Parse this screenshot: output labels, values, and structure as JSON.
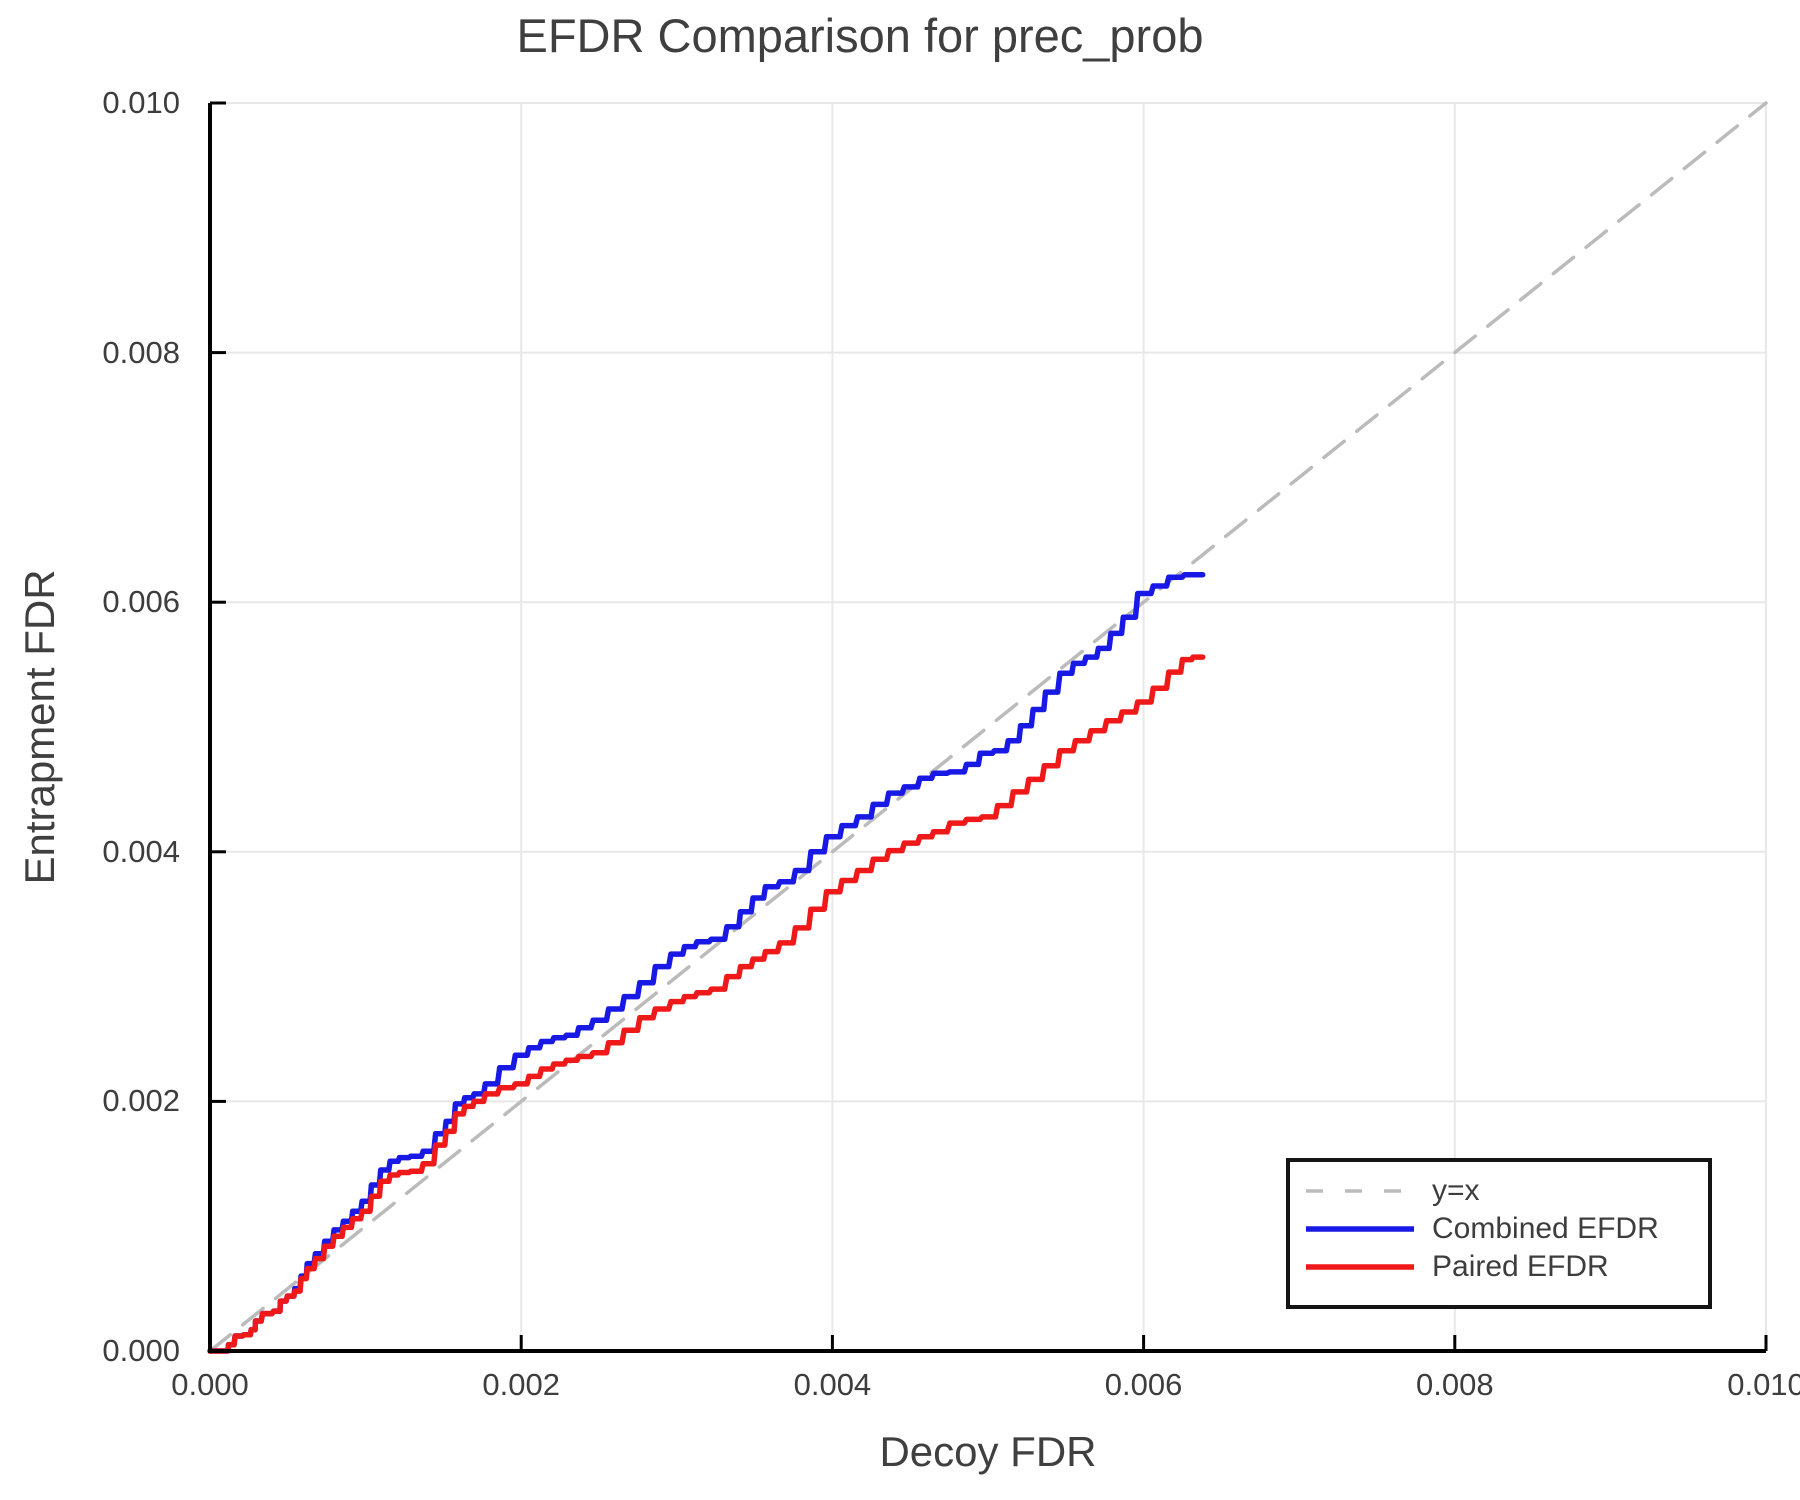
{
  "title": "EFDR Comparison for prec_prob",
  "axes": {
    "xlabel": "Decoy FDR",
    "ylabel": "Entrapment FDR"
  },
  "colors": {
    "text": "#3d3d3d",
    "spine": "#000000",
    "grid": "#e8e8e8",
    "reference_line": "#bbbbbb",
    "combined": "#1919e6",
    "paired": "#f01919"
  },
  "chart_data": {
    "type": "line",
    "title": "EFDR Comparison for prec_prob",
    "xlabel": "Decoy FDR",
    "ylabel": "Entrapment FDR",
    "xlim": [
      0,
      0.01
    ],
    "ylim": [
      0,
      0.01
    ],
    "grid": true,
    "legend_position": "lower right",
    "xticks": {
      "labels": [
        "0.000",
        "0.002",
        "0.004",
        "0.006",
        "0.008",
        "0.010"
      ],
      "values": [
        0,
        0.002,
        0.004,
        0.006,
        0.008,
        0.01
      ]
    },
    "yticks": {
      "labels": [
        "0.000",
        "0.002",
        "0.004",
        "0.006",
        "0.008",
        "0.010"
      ],
      "values": [
        0,
        0.002,
        0.004,
        0.006,
        0.008,
        0.01
      ]
    },
    "series": [
      {
        "name": "y=x",
        "color": "#bbbbbb",
        "style": "dashed",
        "points": [
          [
            0,
            0
          ],
          [
            0.01,
            0.01
          ]
        ]
      },
      {
        "name": "Combined EFDR",
        "color": "#1919e6",
        "style": "solid",
        "points": [
          [
            0.0,
            0.0
          ],
          [
            0.0001,
            0.0
          ],
          [
            0.00013,
            5e-05
          ],
          [
            0.00018,
            0.00012
          ],
          [
            0.00024,
            0.00013
          ],
          [
            0.00028,
            0.00017
          ],
          [
            0.0003,
            0.00024
          ],
          [
            0.00036,
            0.0003
          ],
          [
            0.00044,
            0.00032
          ],
          [
            0.00046,
            0.0004
          ],
          [
            0.00052,
            0.00044
          ],
          [
            0.00056,
            0.0005
          ],
          [
            0.0006,
            0.0006
          ],
          [
            0.00064,
            0.0007
          ],
          [
            0.0007,
            0.00078
          ],
          [
            0.00076,
            0.00088
          ],
          [
            0.00082,
            0.00097
          ],
          [
            0.00088,
            0.00104
          ],
          [
            0.00094,
            0.00112
          ],
          [
            0.001,
            0.0012
          ],
          [
            0.00106,
            0.00133
          ],
          [
            0.00112,
            0.00145
          ],
          [
            0.00118,
            0.00152
          ],
          [
            0.00124,
            0.00155
          ],
          [
            0.00132,
            0.00156
          ],
          [
            0.0014,
            0.0016
          ],
          [
            0.00148,
            0.00174
          ],
          [
            0.00154,
            0.00184
          ],
          [
            0.0016,
            0.00198
          ],
          [
            0.00166,
            0.00203
          ],
          [
            0.00172,
            0.00206
          ],
          [
            0.0018,
            0.00214
          ],
          [
            0.0019,
            0.00227
          ],
          [
            0.002,
            0.00237
          ],
          [
            0.00208,
            0.00243
          ],
          [
            0.00216,
            0.00248
          ],
          [
            0.00224,
            0.00251
          ],
          [
            0.00232,
            0.00253
          ],
          [
            0.0024,
            0.00259
          ],
          [
            0.0025,
            0.00265
          ],
          [
            0.0026,
            0.00274
          ],
          [
            0.0027,
            0.00284
          ],
          [
            0.0028,
            0.00295
          ],
          [
            0.0029,
            0.00308
          ],
          [
            0.003,
            0.00318
          ],
          [
            0.00308,
            0.00324
          ],
          [
            0.00316,
            0.00328
          ],
          [
            0.00326,
            0.0033
          ],
          [
            0.00336,
            0.0034
          ],
          [
            0.00344,
            0.00352
          ],
          [
            0.00352,
            0.00363
          ],
          [
            0.0036,
            0.00372
          ],
          [
            0.0037,
            0.00376
          ],
          [
            0.0038,
            0.00385
          ],
          [
            0.0039,
            0.004
          ],
          [
            0.004,
            0.00412
          ],
          [
            0.0041,
            0.00421
          ],
          [
            0.0042,
            0.00428
          ],
          [
            0.0043,
            0.00438
          ],
          [
            0.0044,
            0.00447
          ],
          [
            0.0045,
            0.00452
          ],
          [
            0.0046,
            0.00459
          ],
          [
            0.00468,
            0.00463
          ],
          [
            0.0048,
            0.00464
          ],
          [
            0.0049,
            0.0047
          ],
          [
            0.00498,
            0.00479
          ],
          [
            0.00508,
            0.00481
          ],
          [
            0.00516,
            0.00489
          ],
          [
            0.00524,
            0.00501
          ],
          [
            0.00532,
            0.00514
          ],
          [
            0.0054,
            0.00528
          ],
          [
            0.0055,
            0.00543
          ],
          [
            0.00558,
            0.00551
          ],
          [
            0.00566,
            0.00556
          ],
          [
            0.00574,
            0.00563
          ],
          [
            0.00582,
            0.00575
          ],
          [
            0.0059,
            0.00588
          ],
          [
            0.006,
            0.00607
          ],
          [
            0.0061,
            0.00613
          ],
          [
            0.0062,
            0.0062
          ],
          [
            0.0063,
            0.00622
          ],
          [
            0.00638,
            0.00622
          ]
        ]
      },
      {
        "name": "Paired EFDR",
        "color": "#f01919",
        "style": "solid",
        "points": [
          [
            0.0,
            0.0
          ],
          [
            0.0001,
            0.0
          ],
          [
            0.00013,
            5e-05
          ],
          [
            0.00018,
            0.00012
          ],
          [
            0.00024,
            0.00013
          ],
          [
            0.00028,
            0.00017
          ],
          [
            0.0003,
            0.00024
          ],
          [
            0.00036,
            0.0003
          ],
          [
            0.00044,
            0.00032
          ],
          [
            0.00046,
            0.0004
          ],
          [
            0.00052,
            0.00044
          ],
          [
            0.00056,
            0.00048
          ],
          [
            0.0006,
            0.00058
          ],
          [
            0.00064,
            0.00066
          ],
          [
            0.0007,
            0.00074
          ],
          [
            0.00076,
            0.00084
          ],
          [
            0.00082,
            0.00092
          ],
          [
            0.00088,
            0.00099
          ],
          [
            0.00094,
            0.00106
          ],
          [
            0.001,
            0.00112
          ],
          [
            0.00106,
            0.00124
          ],
          [
            0.00112,
            0.00136
          ],
          [
            0.00118,
            0.00141
          ],
          [
            0.00124,
            0.00143
          ],
          [
            0.00132,
            0.00144
          ],
          [
            0.0014,
            0.0015
          ],
          [
            0.00148,
            0.00165
          ],
          [
            0.00154,
            0.00176
          ],
          [
            0.0016,
            0.0019
          ],
          [
            0.00166,
            0.00196
          ],
          [
            0.00172,
            0.002
          ],
          [
            0.0018,
            0.00206
          ],
          [
            0.0019,
            0.00211
          ],
          [
            0.002,
            0.00214
          ],
          [
            0.00208,
            0.0022
          ],
          [
            0.00216,
            0.00226
          ],
          [
            0.00224,
            0.0023
          ],
          [
            0.00232,
            0.00233
          ],
          [
            0.0024,
            0.00236
          ],
          [
            0.0025,
            0.00239
          ],
          [
            0.0026,
            0.00247
          ],
          [
            0.0027,
            0.00257
          ],
          [
            0.0028,
            0.00267
          ],
          [
            0.0029,
            0.00274
          ],
          [
            0.003,
            0.0028
          ],
          [
            0.00308,
            0.00284
          ],
          [
            0.00316,
            0.00287
          ],
          [
            0.00326,
            0.0029
          ],
          [
            0.00336,
            0.003
          ],
          [
            0.00344,
            0.00308
          ],
          [
            0.00352,
            0.00314
          ],
          [
            0.0036,
            0.0032
          ],
          [
            0.0037,
            0.00327
          ],
          [
            0.0038,
            0.00339
          ],
          [
            0.0039,
            0.00354
          ],
          [
            0.004,
            0.00368
          ],
          [
            0.0041,
            0.00377
          ],
          [
            0.0042,
            0.00385
          ],
          [
            0.0043,
            0.00394
          ],
          [
            0.0044,
            0.00401
          ],
          [
            0.0045,
            0.00407
          ],
          [
            0.0046,
            0.00412
          ],
          [
            0.00468,
            0.00416
          ],
          [
            0.0048,
            0.00423
          ],
          [
            0.0049,
            0.00426
          ],
          [
            0.005,
            0.00428
          ],
          [
            0.0051,
            0.00437
          ],
          [
            0.0052,
            0.00448
          ],
          [
            0.0053,
            0.00458
          ],
          [
            0.0054,
            0.00469
          ],
          [
            0.0055,
            0.00481
          ],
          [
            0.0056,
            0.00489
          ],
          [
            0.0057,
            0.00497
          ],
          [
            0.0058,
            0.00505
          ],
          [
            0.0059,
            0.00512
          ],
          [
            0.006,
            0.0052
          ],
          [
            0.0061,
            0.00531
          ],
          [
            0.0062,
            0.00544
          ],
          [
            0.00628,
            0.00554
          ],
          [
            0.00634,
            0.00556
          ],
          [
            0.00638,
            0.00556
          ]
        ]
      }
    ]
  }
}
